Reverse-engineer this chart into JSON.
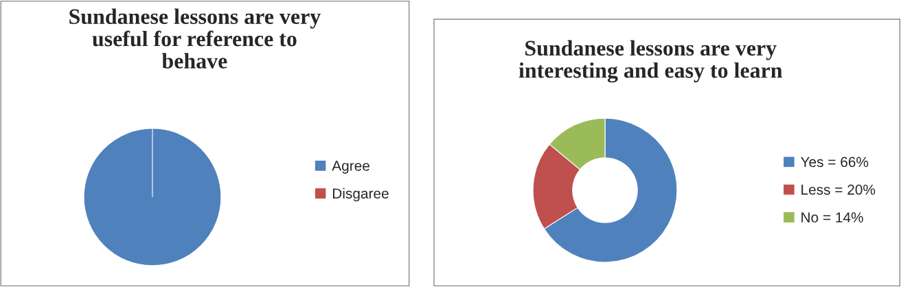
{
  "chart_data": [
    {
      "type": "pie",
      "title": "Sundanese lessons are very\nuseful for reference to\nbehave",
      "categories": [
        "Agree",
        "Disgaree"
      ],
      "values": [
        100,
        0
      ],
      "colors": [
        "#4f81bd",
        "#c0504d"
      ],
      "legend": "right"
    },
    {
      "type": "donut",
      "title": "Sundanese lessons are very\ninteresting and easy to learn",
      "categories": [
        "Yes = 66%",
        "Less = 20%",
        "No = 14%"
      ],
      "values": [
        66,
        20,
        14
      ],
      "colors": [
        "#4f81bd",
        "#c0504d",
        "#9bbb59"
      ],
      "legend": "right"
    }
  ]
}
